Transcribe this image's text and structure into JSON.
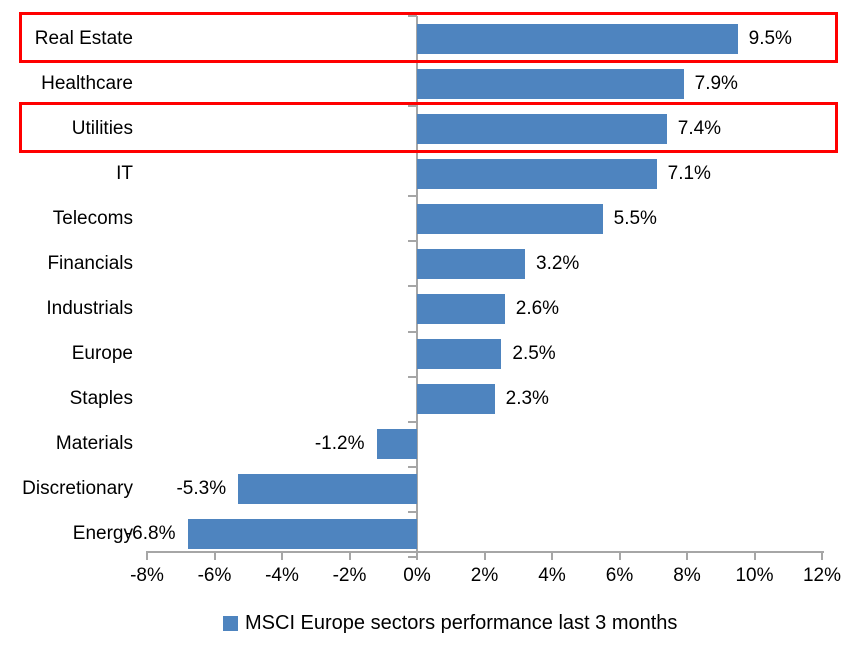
{
  "chart_data": {
    "type": "bar",
    "orientation": "horizontal",
    "title": "",
    "categories": [
      "Real Estate",
      "Healthcare",
      "Utilities",
      "IT",
      "Telecoms",
      "Financials",
      "Industrials",
      "Europe",
      "Staples",
      "Materials",
      "Discretionary",
      "Energy"
    ],
    "values": [
      9.5,
      7.9,
      7.4,
      7.1,
      5.5,
      3.2,
      2.6,
      2.5,
      2.3,
      -1.2,
      -5.3,
      -6.8
    ],
    "value_labels": [
      "9.5%",
      "7.9%",
      "7.4%",
      "7.1%",
      "5.5%",
      "3.2%",
      "2.6%",
      "2.5%",
      "2.3%",
      "-1.2%",
      "-5.3%",
      "-6.8%"
    ],
    "xlabel": "",
    "ylabel": "",
    "xlim": [
      -8,
      12
    ],
    "x_tick_step": 2,
    "x_tick_labels": [
      "-8%",
      "-6%",
      "-4%",
      "-2%",
      "0%",
      "2%",
      "4%",
      "6%",
      "8%",
      "10%",
      "12%"
    ],
    "grid": false,
    "bar_color": "#4E84BF",
    "axis_color": "#A6A6A6",
    "legend": {
      "position": "bottom",
      "entries": [
        {
          "label": "MSCI Europe sectors performance last 3 months",
          "color": "#4E84BF"
        }
      ]
    },
    "highlights": [
      {
        "category": "Real Estate",
        "color": "#FF0000"
      },
      {
        "category": "Utilities",
        "color": "#FF0000"
      }
    ]
  }
}
